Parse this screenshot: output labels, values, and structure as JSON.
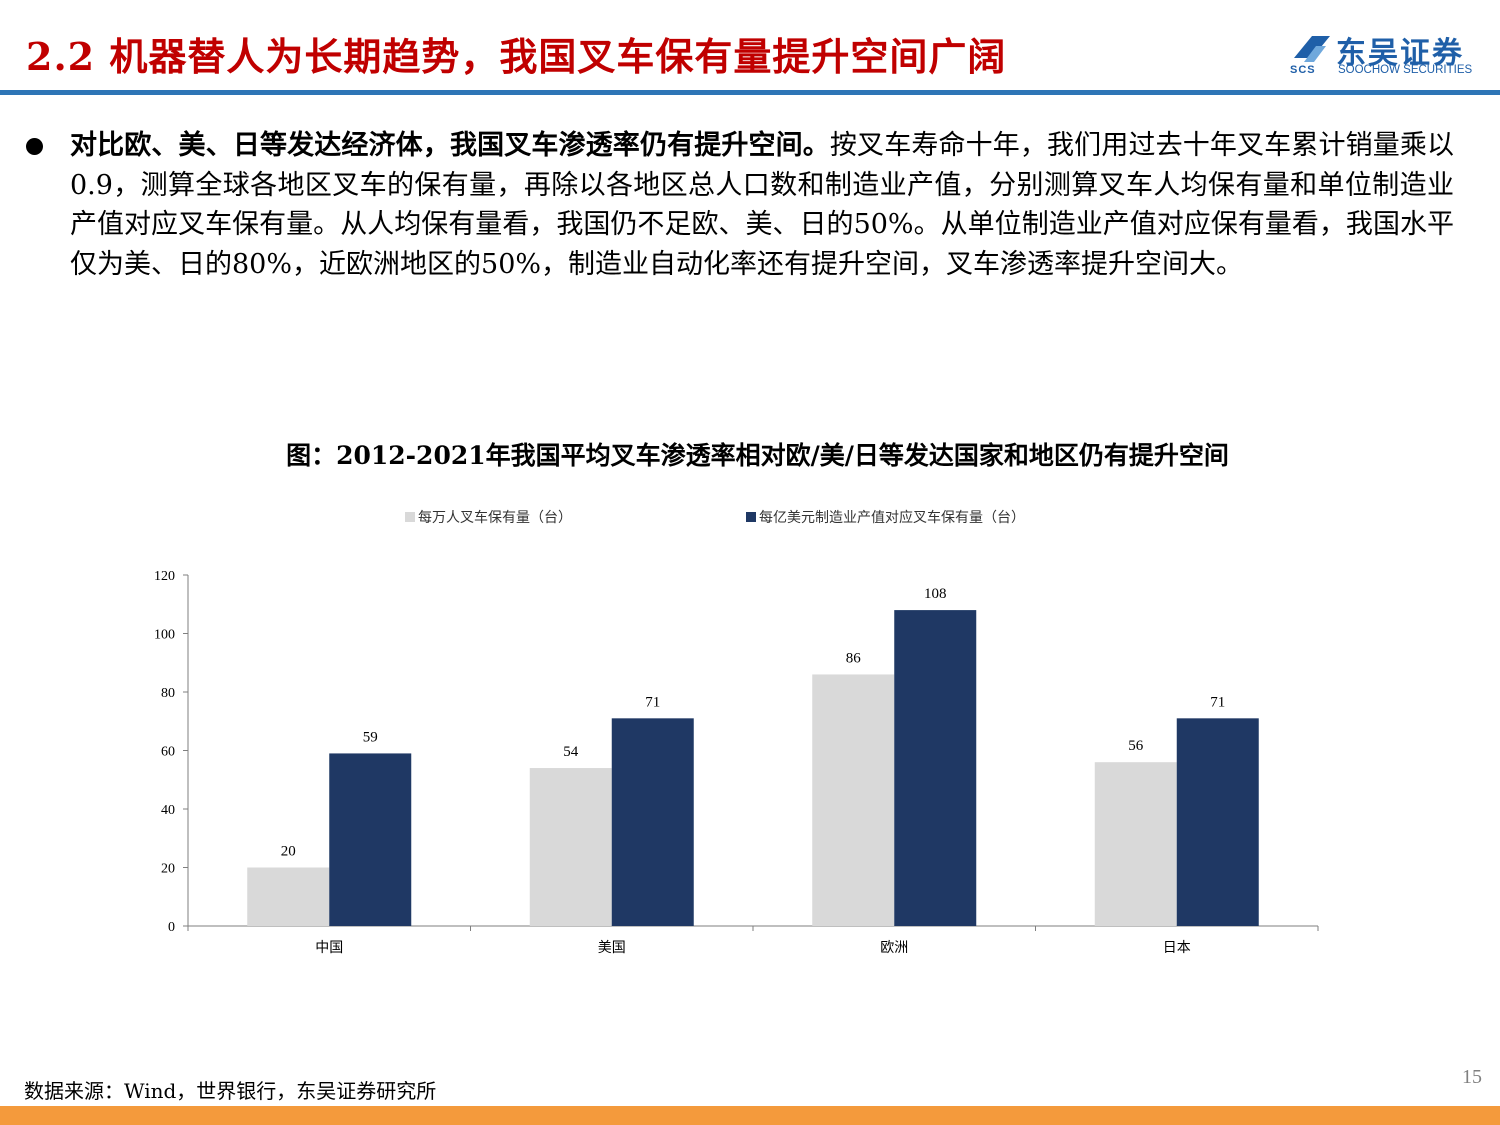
{
  "slide": {
    "title": "2.2 机器替人为长期趋势，我国叉车保有量提升空间广阔",
    "page_number": "15",
    "source": "数据来源：Wind，世界银行，东吴证券研究所"
  },
  "logo": {
    "name_cn": "东吴证券",
    "name_en": "SOOCHOW SECURITIES",
    "mark_text": "SCS",
    "color": "#1F5FA8"
  },
  "bullet": {
    "lead": "对比欧、美、日等发达经济体，我国叉车渗透率仍有提升空间。",
    "text": "按叉车寿命十年，我们用过去十年叉车累计销量乘以0.9，测算全球各地区叉车的保有量，再除以各地区总人口数和制造业产值，分别测算叉车人均保有量和单位制造业产值对应叉车保有量。从人均保有量看，我国仍不足欧、美、日的50%。从单位制造业产值对应保有量看，我国水平仅为美、日的80%，近欧洲地区的50%，制造业自动化率还有提升空间，叉车渗透率提升空间大。"
  },
  "chart_data": {
    "type": "bar",
    "title": "图：2012-2021年我国平均叉车渗透率相对欧/美/日等发达国家和地区仍有提升空间",
    "categories": [
      "中国",
      "美国",
      "欧洲",
      "日本"
    ],
    "series": [
      {
        "name": "每万人叉车保有量（台）",
        "values": [
          20,
          54,
          86,
          56
        ],
        "color": "#D9D9D9"
      },
      {
        "name": "每亿美元制造业产值对应叉车保有量（台）",
        "values": [
          59,
          71,
          108,
          71
        ],
        "color": "#1F3864"
      }
    ],
    "ylim": [
      0,
      120
    ],
    "yticks": [
      0,
      20,
      40,
      60,
      80,
      100,
      120
    ],
    "xlabel": "",
    "ylabel": "",
    "grid": false,
    "legend": "top",
    "data_labels": true
  },
  "colors": {
    "title_red": "#C00000",
    "header_rule": "#2E75B6",
    "footer_bar": "#F49A3C"
  }
}
